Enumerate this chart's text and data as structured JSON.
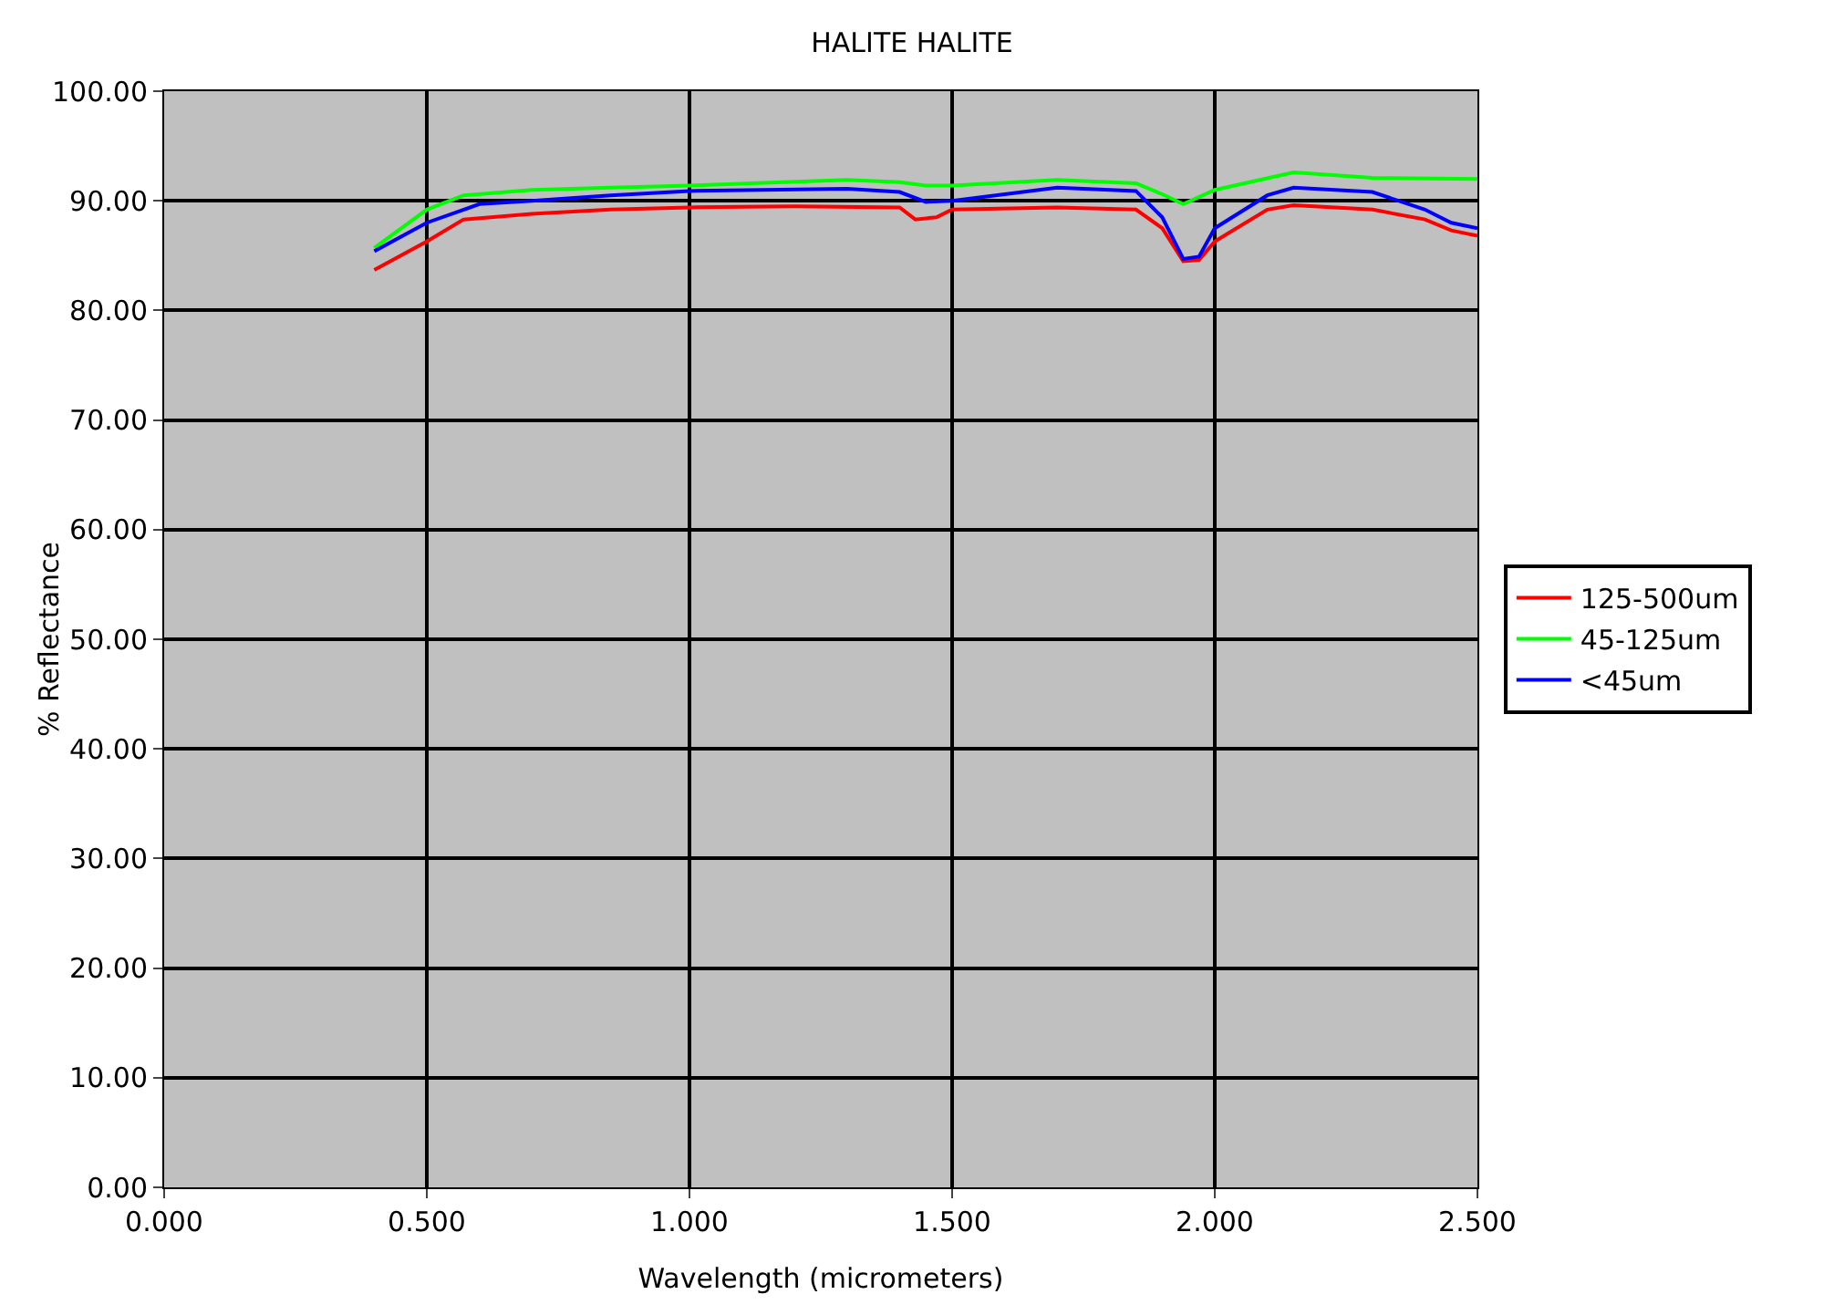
{
  "chart_data": {
    "type": "line",
    "title": "HALITE HALITE",
    "xlabel": "Wavelength (micrometers)",
    "ylabel": "% Reflectance",
    "xlim": [
      0,
      2.5
    ],
    "ylim": [
      0,
      100
    ],
    "xticks": [
      {
        "value": 0,
        "label": "0.000"
      },
      {
        "value": 0.5,
        "label": "0.500"
      },
      {
        "value": 1,
        "label": "1.000"
      },
      {
        "value": 1.5,
        "label": "1.500"
      },
      {
        "value": 2,
        "label": "2.000"
      },
      {
        "value": 2.5,
        "label": "2.500"
      }
    ],
    "yticks": [
      {
        "value": 0,
        "label": "0.00"
      },
      {
        "value": 10,
        "label": "10.00"
      },
      {
        "value": 20,
        "label": "20.00"
      },
      {
        "value": 30,
        "label": "30.00"
      },
      {
        "value": 40,
        "label": "40.00"
      },
      {
        "value": 50,
        "label": "50.00"
      },
      {
        "value": 60,
        "label": "60.00"
      },
      {
        "value": 70,
        "label": "70.00"
      },
      {
        "value": 80,
        "label": "80.00"
      },
      {
        "value": 90,
        "label": "90.00"
      },
      {
        "value": 100,
        "label": "100.00"
      }
    ],
    "grid": true,
    "legend": "right",
    "marker": "none",
    "line_style": "solid",
    "series": [
      {
        "name": "125-500um",
        "color": "#ff0000",
        "x": [
          0.4,
          0.5,
          0.57,
          0.7,
          0.85,
          1.0,
          1.2,
          1.4,
          1.43,
          1.47,
          1.5,
          1.7,
          1.85,
          1.9,
          1.94,
          1.97,
          2.0,
          2.1,
          2.15,
          2.3,
          2.4,
          2.45,
          2.5
        ],
        "values": [
          83.7,
          86.3,
          88.3,
          88.8,
          89.2,
          89.4,
          89.5,
          89.4,
          88.3,
          88.5,
          89.2,
          89.4,
          89.2,
          87.5,
          84.5,
          84.6,
          86.3,
          89.2,
          89.6,
          89.2,
          88.3,
          87.3,
          86.8
        ]
      },
      {
        "name": "45-125um",
        "color": "#00ff00",
        "x": [
          0.4,
          0.5,
          0.57,
          0.7,
          0.85,
          1.0,
          1.3,
          1.4,
          1.45,
          1.5,
          1.7,
          1.85,
          1.9,
          1.94,
          2.0,
          2.15,
          2.3,
          2.5
        ],
        "values": [
          85.7,
          89.2,
          90.5,
          91.0,
          91.2,
          91.4,
          91.9,
          91.7,
          91.4,
          91.4,
          91.9,
          91.6,
          90.6,
          89.7,
          91.0,
          92.6,
          92.1,
          92.0
        ]
      },
      {
        "name": "<45um",
        "color": "#0000ff",
        "x": [
          0.4,
          0.5,
          0.6,
          0.7,
          0.85,
          1.0,
          1.3,
          1.4,
          1.45,
          1.5,
          1.7,
          1.85,
          1.9,
          1.94,
          1.97,
          2.0,
          2.1,
          2.15,
          2.3,
          2.4,
          2.45,
          2.5
        ],
        "values": [
          85.4,
          88.0,
          89.7,
          90.0,
          90.5,
          90.9,
          91.1,
          90.8,
          89.9,
          90.0,
          91.2,
          90.9,
          88.5,
          84.7,
          84.9,
          87.5,
          90.5,
          91.2,
          90.8,
          89.2,
          88.0,
          87.5
        ]
      }
    ]
  }
}
